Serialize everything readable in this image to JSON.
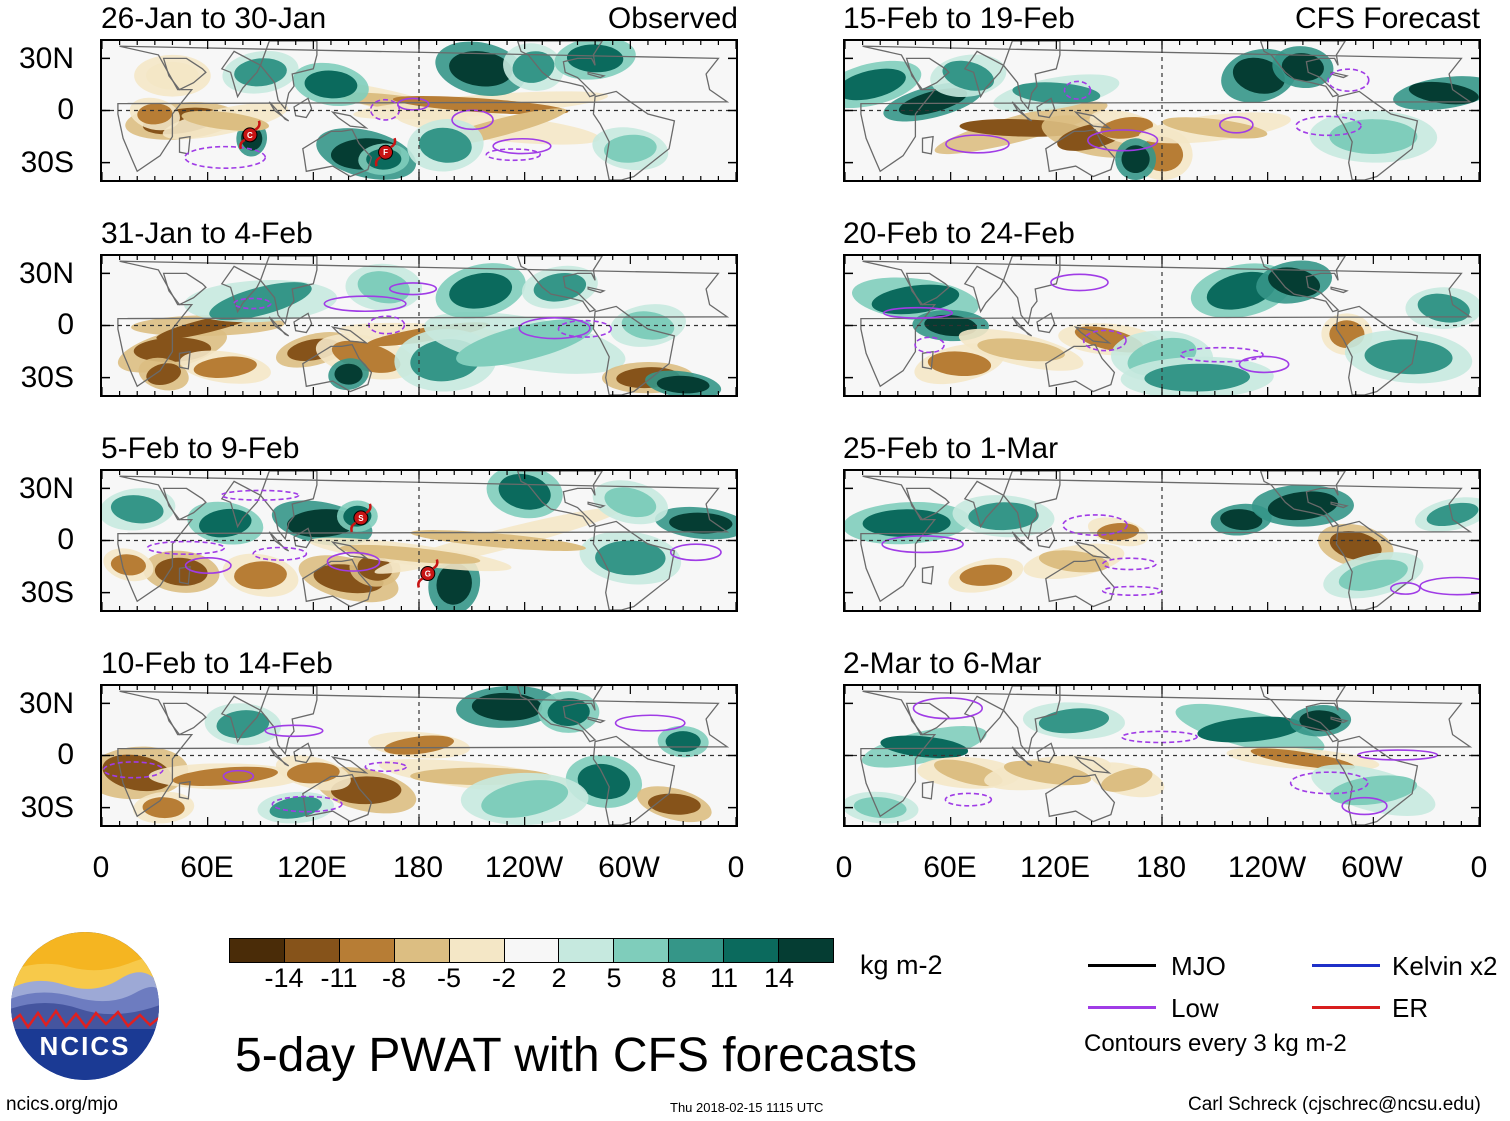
{
  "columns": [
    {
      "tag": "Observed",
      "panels": [
        {
          "period": "26-Jan to 30-Jan",
          "storms": [
            {
              "letter": "C",
              "lon": 84,
              "lat": -14
            },
            {
              "letter": "F",
              "lon": 161,
              "lat": -24
            }
          ]
        },
        {
          "period": "31-Jan to 4-Feb",
          "storms": []
        },
        {
          "period": "5-Feb to 9-Feb",
          "storms": [
            {
              "letter": "S",
              "lon": 147,
              "lat": 13
            },
            {
              "letter": "G",
              "lon": 185,
              "lat": -19
            }
          ]
        },
        {
          "period": "10-Feb to 14-Feb",
          "storms": []
        }
      ]
    },
    {
      "tag": "CFS Forecast",
      "panels": [
        {
          "period": "15-Feb to 19-Feb",
          "storms": []
        },
        {
          "period": "20-Feb to 24-Feb",
          "storms": []
        },
        {
          "period": "25-Feb to 1-Mar",
          "storms": []
        },
        {
          "period": "2-Mar to 6-Mar",
          "storms": []
        }
      ]
    }
  ],
  "lat_labels": [
    "30N",
    "0",
    "30S"
  ],
  "lon_labels": [
    "0",
    "60E",
    "120E",
    "180",
    "120W",
    "60W",
    "0"
  ],
  "colorbar": {
    "colors": [
      "#4a2c08",
      "#86531a",
      "#b77d35",
      "#dcbe82",
      "#f4e7c6",
      "#f7f7f7",
      "#c6e9df",
      "#7fcdbb",
      "#359688",
      "#0b6a5d",
      "#053d33"
    ],
    "labels": [
      "-14",
      "-11",
      "-8",
      "-5",
      "-2",
      "2",
      "5",
      "8",
      "11",
      "14"
    ],
    "units": "kg m-2"
  },
  "title": "5-day PWAT with CFS forecasts",
  "legend": {
    "items": [
      {
        "label": "MJO",
        "color": "#000000"
      },
      {
        "label": "Kelvin x2",
        "color": "#1f30c8"
      },
      {
        "label": "Low",
        "color": "#a03ce6"
      },
      {
        "label": "ER",
        "color": "#d81e1e"
      }
    ],
    "note": "Contours every 3 kg m-2"
  },
  "logo": {
    "text": "NCICS"
  },
  "footer": {
    "url": "ncics.org/mjo",
    "timestamp": "Thu 2018-02-15 1115 UTC",
    "credit": "Carl Schreck (cjschrec@ncsu.edu)"
  }
}
